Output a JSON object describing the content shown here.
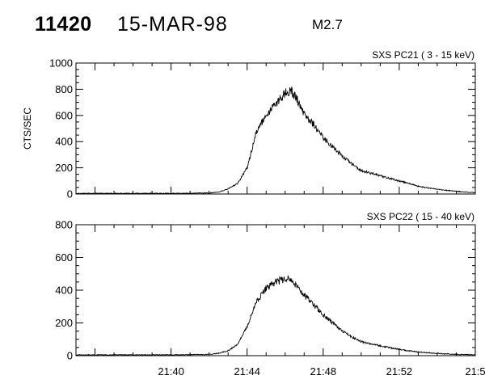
{
  "header": {
    "event_number": "11420",
    "date": "15-MAR-98",
    "goes_class": "M2.7"
  },
  "chart_data": [
    {
      "type": "line",
      "panel": "top",
      "title": "SXS PC21  (  3 - 15 keV)",
      "ylabel": "CTS/SEC",
      "xlabel": "",
      "xlim": [
        "21:35",
        "21:56"
      ],
      "ylim": [
        0,
        1000
      ],
      "yticks": [
        "0",
        "200",
        "400",
        "600",
        "800",
        "1000"
      ],
      "x_tick_labels": [],
      "x_minor_ticks": true,
      "y_minor_ticks": true,
      "grid": false,
      "series": [
        {
          "x": [
            "21:35",
            "21:38",
            "21:40",
            "21:41",
            "21:42",
            "21:42:30",
            "21:43",
            "21:43:30",
            "21:44",
            "21:44:30",
            "21:45",
            "21:45:30",
            "21:46",
            "21:46:15",
            "21:46:30",
            "21:47",
            "21:47:30",
            "21:48",
            "21:48:30",
            "21:49",
            "21:49:30",
            "21:50",
            "21:51",
            "21:52",
            "21:53",
            "21:54",
            "21:55",
            "21:56"
          ],
          "y": [
            5,
            5,
            5,
            6,
            8,
            15,
            40,
            80,
            200,
            480,
            600,
            690,
            770,
            790,
            760,
            610,
            530,
            430,
            360,
            290,
            230,
            180,
            140,
            100,
            60,
            35,
            20,
            10
          ]
        }
      ]
    },
    {
      "type": "line",
      "panel": "bottom",
      "title": "SXS PC22  ( 15 - 40 keV)",
      "ylabel": "",
      "xlabel": "",
      "xlim": [
        "21:35",
        "21:56"
      ],
      "ylim": [
        0,
        800
      ],
      "yticks": [
        "0",
        "200",
        "400",
        "600",
        "800"
      ],
      "x_tick_labels": [
        "21:40",
        "21:44",
        "21:48",
        "21:52",
        "21:5"
      ],
      "x_minor_ticks": true,
      "y_minor_ticks": true,
      "grid": false,
      "series": [
        {
          "x": [
            "21:35",
            "21:38",
            "21:40",
            "21:41",
            "21:42",
            "21:42:30",
            "21:43",
            "21:43:30",
            "21:44",
            "21:44:30",
            "21:45",
            "21:45:30",
            "21:46",
            "21:46:15",
            "21:46:30",
            "21:47",
            "21:47:30",
            "21:48",
            "21:48:30",
            "21:49",
            "21:49:30",
            "21:50",
            "21:51",
            "21:52",
            "21:53",
            "21:54",
            "21:55",
            "21:56"
          ],
          "y": [
            5,
            5,
            5,
            6,
            8,
            15,
            30,
            70,
            180,
            330,
            410,
            450,
            470,
            465,
            440,
            370,
            310,
            250,
            200,
            150,
            115,
            85,
            60,
            38,
            22,
            14,
            8,
            5
          ]
        }
      ]
    }
  ]
}
